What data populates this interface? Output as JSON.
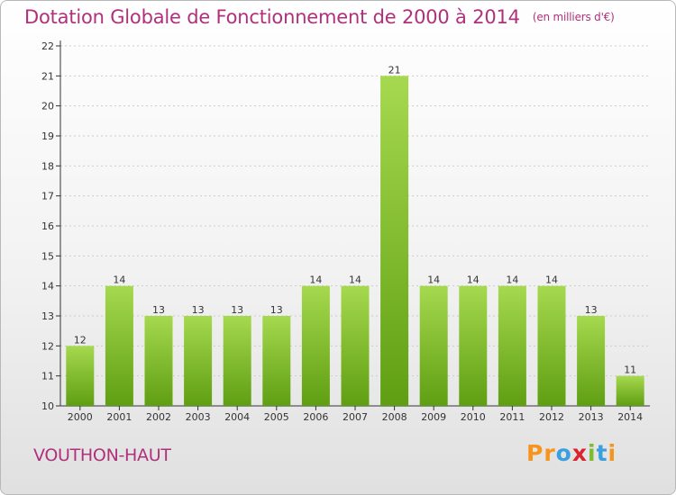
{
  "title": "Dotation Globale de Fonctionnement de 2000 à 2014",
  "subtitle": "(en milliers d'€)",
  "town": "VOUTHON-HAUT",
  "logo": {
    "letters": [
      "P",
      "r",
      "o",
      "x",
      "i",
      "t",
      "i"
    ],
    "colors": [
      "#f7941d",
      "#f7941d",
      "#3aa0e0",
      "#d9232e",
      "#7dbb2f",
      "#3aa0e0",
      "#f7941d"
    ]
  },
  "colors": {
    "bar_light": "#a6d94f",
    "bar_dark": "#5f9e12",
    "axis": "#333333",
    "grid": "#cccccc",
    "text": "#333333"
  },
  "chart_data": {
    "type": "bar",
    "categories": [
      "2000",
      "2001",
      "2002",
      "2003",
      "2004",
      "2005",
      "2006",
      "2007",
      "2008",
      "2009",
      "2010",
      "2011",
      "2012",
      "2013",
      "2014"
    ],
    "values": [
      12,
      14,
      13,
      13,
      13,
      13,
      14,
      14,
      21,
      14,
      14,
      14,
      14,
      13,
      11
    ],
    "data_labels": [
      "12",
      "14",
      "13",
      "13",
      "13",
      "13",
      "14",
      "14",
      "21",
      "14",
      "14",
      "14",
      "14",
      "13",
      "11"
    ],
    "y_ticks": [
      "10",
      "11",
      "12",
      "13",
      "14",
      "15",
      "16",
      "17",
      "18",
      "19",
      "20",
      "21",
      "22"
    ],
    "ylim": [
      10,
      22
    ],
    "grid": true
  }
}
